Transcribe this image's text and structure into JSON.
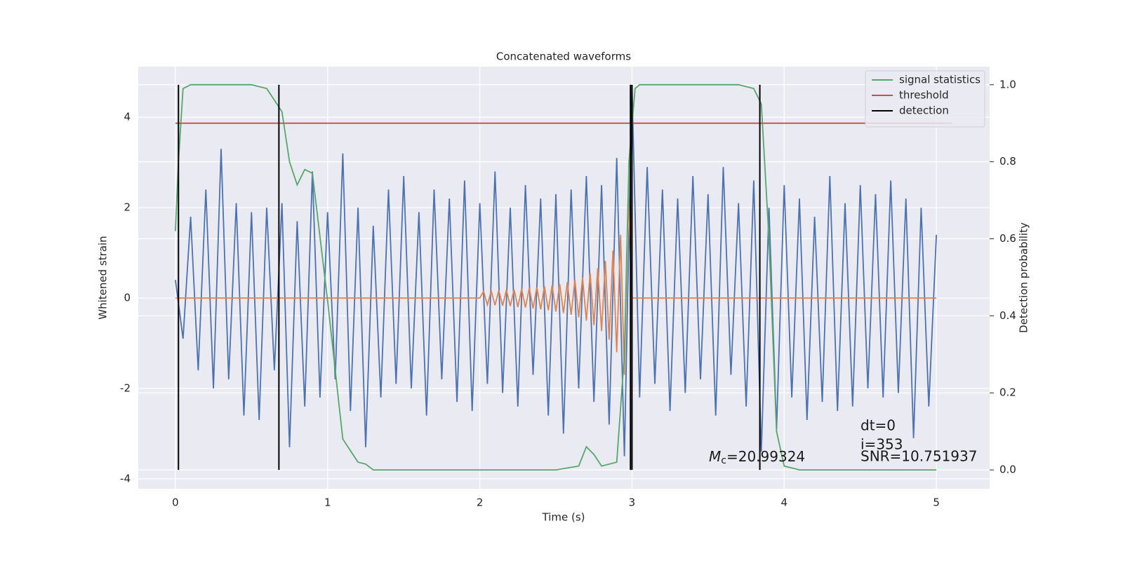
{
  "chart_data": {
    "type": "line",
    "title": "Concatenated waveforms",
    "xlabel": "Time (s)",
    "ylabel": "Whitened strain",
    "y2label": "Detection probability",
    "xlim": [
      -0.244,
      5.35
    ],
    "ylim": [
      -4.22,
      5.12
    ],
    "y2lim": [
      -0.049,
      1.047
    ],
    "xticks": [
      0,
      1,
      2,
      3,
      4,
      5
    ],
    "yticks": [
      -4,
      -2,
      0,
      2,
      4
    ],
    "y2ticks": [
      {
        "value": 0,
        "label": "0.0"
      },
      0.2,
      0.4,
      0.6,
      0.8,
      {
        "value": 1,
        "label": "1.0"
      }
    ],
    "grid": true,
    "legend": "upper right",
    "series": [
      {
        "color": "#4c72b0",
        "x": [
          0,
          0.05,
          0.1,
          0.15,
          0.2,
          0.25,
          0.3,
          0.35,
          0.4,
          0.45,
          0.5,
          0.55,
          0.6,
          0.65,
          0.7,
          0.75,
          0.8,
          0.85,
          0.9,
          0.95,
          1.0,
          1.05,
          1.1,
          1.15,
          1.2,
          1.25,
          1.3,
          1.35,
          1.4,
          1.45,
          1.5,
          1.55,
          1.6,
          1.65,
          1.7,
          1.75,
          1.8,
          1.85,
          1.9,
          1.95,
          2.0,
          2.05,
          2.1,
          2.15,
          2.2,
          2.25,
          2.3,
          2.35,
          2.4,
          2.45,
          2.5,
          2.55,
          2.6,
          2.65,
          2.7,
          2.75,
          2.8,
          2.85,
          2.9,
          2.95,
          3.0,
          3.05,
          3.1,
          3.15,
          3.2,
          3.25,
          3.3,
          3.35,
          3.4,
          3.45,
          3.5,
          3.55,
          3.6,
          3.65,
          3.7,
          3.75,
          3.8,
          3.85,
          3.9,
          3.95,
          4.0,
          4.05,
          4.1,
          4.15,
          4.2,
          4.25,
          4.3,
          4.35,
          4.4,
          4.45,
          4.5,
          4.55,
          4.6,
          4.65,
          4.7,
          4.75,
          4.8,
          4.85,
          4.9,
          4.95,
          5.0
        ],
        "values": [
          0.4,
          -0.9,
          1.8,
          -1.6,
          2.4,
          -2.0,
          3.3,
          -1.8,
          2.1,
          -2.6,
          1.9,
          -2.7,
          2.0,
          -1.6,
          2.1,
          -3.3,
          1.7,
          -2.4,
          2.8,
          -2.2,
          1.9,
          -1.8,
          3.2,
          -2.5,
          2.0,
          -3.3,
          1.6,
          -2.2,
          2.4,
          -1.9,
          2.7,
          -2.0,
          1.9,
          -2.6,
          2.4,
          -1.8,
          2.2,
          -2.3,
          2.6,
          -2.5,
          2.1,
          -1.9,
          2.8,
          -2.1,
          2.0,
          -2.4,
          2.5,
          -1.7,
          2.2,
          -2.6,
          2.3,
          -3.0,
          2.4,
          -2.0,
          2.7,
          -2.3,
          2.5,
          -2.8,
          3.1,
          -3.5,
          4.7,
          -2.2,
          2.9,
          -1.9,
          2.4,
          -2.5,
          2.2,
          -2.1,
          2.7,
          -1.8,
          2.3,
          -2.6,
          2.9,
          -1.7,
          2.1,
          -2.4,
          2.6,
          -3.4,
          2.0,
          -2.9,
          2.5,
          -2.2,
          2.2,
          -2.7,
          1.8,
          -2.3,
          2.7,
          -2.5,
          2.1,
          -2.4,
          2.5,
          -2.0,
          2.3,
          -2.2,
          2.6,
          -2.1,
          2.2,
          -3.1,
          2.0,
          -2.4,
          1.4
        ]
      },
      {
        "color": "#dd8452",
        "x": [
          0,
          2.0,
          2.025,
          2.05,
          2.075,
          2.1,
          2.125,
          2.15,
          2.175,
          2.2,
          2.225,
          2.25,
          2.275,
          2.3,
          2.325,
          2.35,
          2.375,
          2.4,
          2.425,
          2.45,
          2.475,
          2.5,
          2.525,
          2.55,
          2.575,
          2.6,
          2.625,
          2.65,
          2.675,
          2.7,
          2.725,
          2.75,
          2.775,
          2.8,
          2.825,
          2.85,
          2.875,
          2.9,
          2.925,
          2.95,
          2.975,
          3.0,
          5.0
        ],
        "values": [
          0,
          0,
          0.15,
          -0.15,
          0.16,
          -0.16,
          0.17,
          -0.17,
          0.18,
          -0.18,
          0.19,
          -0.2,
          0.2,
          -0.21,
          0.22,
          -0.23,
          0.24,
          -0.25,
          0.26,
          -0.27,
          0.28,
          -0.3,
          0.31,
          -0.33,
          0.35,
          -0.37,
          0.4,
          -0.43,
          0.46,
          -0.5,
          0.55,
          -0.6,
          0.66,
          -0.73,
          0.82,
          -0.92,
          1.05,
          -1.2,
          1.4,
          -1.7,
          2.2,
          0,
          0
        ]
      },
      {
        "name": "signal statistics",
        "color": "#55a868",
        "axis": "y2",
        "x": [
          0,
          0.02,
          0.05,
          0.1,
          0.5,
          0.6,
          0.65,
          0.7,
          0.75,
          0.8,
          0.85,
          0.9,
          1.0,
          1.1,
          1.2,
          1.25,
          1.3,
          1.5,
          2.0,
          2.5,
          2.65,
          2.7,
          2.75,
          2.8,
          2.9,
          2.95,
          2.98,
          3.02,
          3.05,
          3.1,
          3.7,
          3.8,
          3.85,
          3.9,
          3.95,
          4.0,
          4.1,
          5.0
        ],
        "values": [
          0.62,
          0.8,
          0.99,
          1.0,
          1.0,
          0.99,
          0.96,
          0.93,
          0.8,
          0.74,
          0.78,
          0.77,
          0.44,
          0.08,
          0.02,
          0.015,
          0.0,
          0.0,
          0.0,
          0.0,
          0.01,
          0.06,
          0.04,
          0.01,
          0.02,
          0.3,
          0.8,
          0.99,
          1.0,
          1.0,
          1.0,
          0.99,
          0.95,
          0.6,
          0.1,
          0.01,
          0.0,
          0.0
        ]
      },
      {
        "name": "threshold",
        "color": "#c44e52",
        "axis": "y2",
        "x": [
          0,
          5.1
        ],
        "values": [
          0.9,
          0.9
        ]
      },
      {
        "name": "detection",
        "color": "#000000",
        "axis": "y2",
        "style": "vlines",
        "x": [
          0.02,
          0.68,
          2.99,
          3.0,
          3.84
        ],
        "values": [
          1,
          1,
          1,
          1,
          1
        ]
      }
    ],
    "annotations": {
      "mc_symbol": "M",
      "mc_subscript": "c",
      "mc_text": "=20.99324",
      "dt": "dt=0",
      "i": "i=353",
      "snr": "SNR=10.751937"
    }
  }
}
